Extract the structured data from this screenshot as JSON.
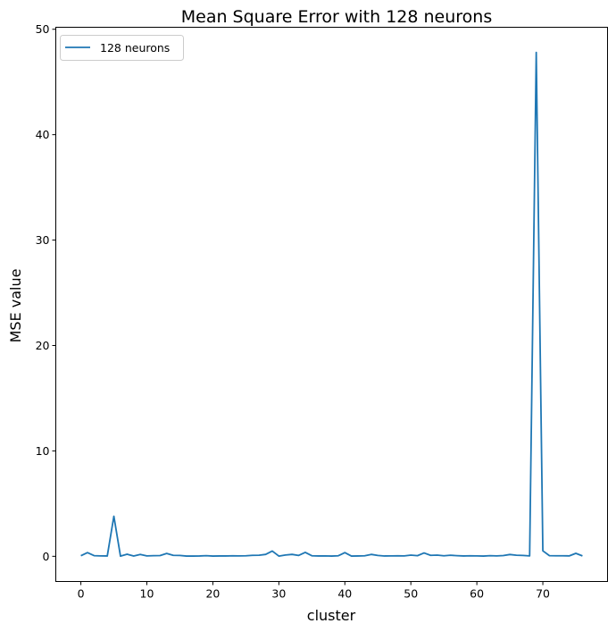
{
  "chart_data": {
    "type": "line",
    "title": "Mean Square Error with 128 neurons",
    "xlabel": "cluster",
    "ylabel": "MSE value",
    "xlim": [
      -3.8,
      79.8
    ],
    "ylim": [
      -2.39,
      50.19
    ],
    "xticks": [
      0,
      10,
      20,
      30,
      40,
      50,
      60,
      70
    ],
    "yticks": [
      0,
      10,
      20,
      30,
      40,
      50
    ],
    "grid": false,
    "legend_position": "upper-left",
    "series": [
      {
        "name": "128 neurons",
        "color": "#1f77b4",
        "x": [
          0,
          1,
          2,
          3,
          4,
          5,
          6,
          7,
          8,
          9,
          10,
          11,
          12,
          13,
          14,
          15,
          16,
          17,
          18,
          19,
          20,
          21,
          22,
          23,
          24,
          25,
          26,
          27,
          28,
          29,
          30,
          31,
          32,
          33,
          34,
          35,
          36,
          37,
          38,
          39,
          40,
          41,
          42,
          43,
          44,
          45,
          46,
          47,
          48,
          49,
          50,
          51,
          52,
          53,
          54,
          55,
          56,
          57,
          58,
          59,
          60,
          61,
          62,
          63,
          64,
          65,
          66,
          67,
          68,
          69,
          70,
          71,
          72,
          73,
          74,
          75,
          76
        ],
        "values": [
          0.05,
          0.35,
          0.06,
          0.04,
          0.03,
          3.8,
          0.02,
          0.2,
          0.03,
          0.18,
          0.04,
          0.06,
          0.07,
          0.27,
          0.09,
          0.08,
          0.02,
          0.02,
          0.03,
          0.06,
          0.02,
          0.03,
          0.03,
          0.05,
          0.04,
          0.05,
          0.09,
          0.1,
          0.18,
          0.5,
          0.02,
          0.12,
          0.18,
          0.08,
          0.37,
          0.05,
          0.03,
          0.04,
          0.02,
          0.05,
          0.35,
          0.02,
          0.03,
          0.05,
          0.18,
          0.08,
          0.03,
          0.04,
          0.05,
          0.04,
          0.11,
          0.06,
          0.32,
          0.09,
          0.11,
          0.05,
          0.1,
          0.06,
          0.03,
          0.05,
          0.04,
          0.02,
          0.06,
          0.04,
          0.07,
          0.17,
          0.1,
          0.08,
          0.04,
          47.8,
          0.52,
          0.06,
          0.05,
          0.05,
          0.04,
          0.28,
          0.04
        ]
      }
    ]
  }
}
